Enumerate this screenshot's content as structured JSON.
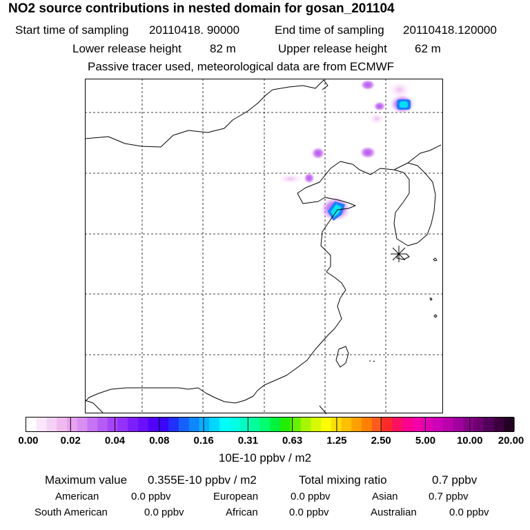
{
  "header": {
    "title": "NO2 source contributions in nested domain for gosan_201104",
    "start_label": "Start time of sampling",
    "start_value": "20110418. 90000",
    "end_label": "End time of sampling",
    "end_value": "20110418.120000",
    "lower_label": "Lower release height",
    "lower_value": "82 m",
    "upper_label": "Upper release height",
    "upper_value": "62 m",
    "note": "Passive tracer used, meteorological data are from ECMWF"
  },
  "colorbar": {
    "tick_labels": [
      "0.00",
      "0.02",
      "0.04",
      "0.08",
      "0.16",
      "0.31",
      "0.63",
      "1.25",
      "2.50",
      "5.00",
      "10.00",
      "20.00"
    ],
    "colors": [
      "#ffffff",
      "#fbe6fb",
      "#f5d2f5",
      "#efbaef",
      "#e9a2f0",
      "#d98ef2",
      "#c674f4",
      "#b65cf6",
      "#a544f8",
      "#9430fa",
      "#7d1efc",
      "#6a10fe",
      "#5200fe",
      "#3a06fe",
      "#2230fe",
      "#1660fe",
      "#0e86fe",
      "#08aefe",
      "#00d6fe",
      "#00fefe",
      "#00fee6",
      "#00fec2",
      "#00fe9a",
      "#00fe6e",
      "#00f23c",
      "#22ee00",
      "#66f200",
      "#a6f600",
      "#d6fa00",
      "#fefe00",
      "#fee000",
      "#fec000",
      "#fea000",
      "#fe8000",
      "#fe5a20",
      "#fe2a2a",
      "#fe1060",
      "#fe0090",
      "#f400a8",
      "#e000b4",
      "#cc00b8",
      "#b800ac",
      "#a0009c",
      "#880088",
      "#6e0070",
      "#52005a",
      "#3c003e",
      "#240024"
    ],
    "units": "10E-10 ppbv / m2"
  },
  "stats": {
    "max_label": "Maximum value",
    "max_value": "0.355E-10 ppbv / m2",
    "total_label": "Total mixing ratio",
    "total_value": "0.7 ppbv",
    "regions": [
      {
        "name": "American",
        "value": "0.0 ppbv"
      },
      {
        "name": "European",
        "value": "0.0 ppbv"
      },
      {
        "name": "Asian",
        "value": "0.7 ppbv"
      },
      {
        "name": "South American",
        "value": "0.0 ppbv"
      },
      {
        "name": "African",
        "value": "0.0 ppbv"
      },
      {
        "name": "Australian",
        "value": "0.0 ppbv"
      }
    ]
  }
}
